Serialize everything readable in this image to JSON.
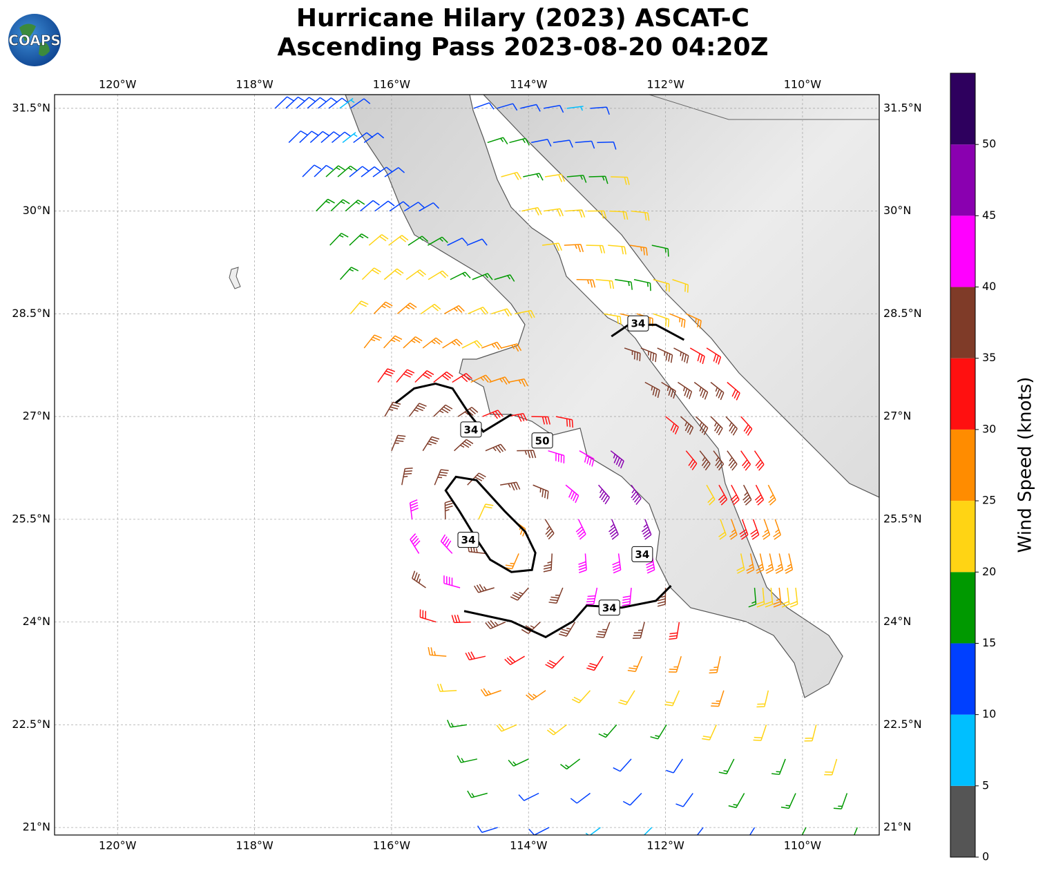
{
  "title_lines": [
    "Hurricane Hilary (2023) ASCAT-C",
    "Ascending Pass 2023-08-20 04:20Z"
  ],
  "logo_text": "COAPS",
  "map": {
    "lonlim": [
      -120.92,
      -108.88
    ],
    "latlim": [
      20.89,
      31.7
    ],
    "grid": true,
    "lonticks": [
      {
        "value": -120,
        "label": "120°W"
      },
      {
        "value": -118,
        "label": "118°W"
      },
      {
        "value": -116,
        "label": "116°W"
      },
      {
        "value": -114,
        "label": "114°W"
      },
      {
        "value": -112,
        "label": "112°W"
      },
      {
        "value": -110,
        "label": "110°W"
      }
    ],
    "latticks": [
      {
        "value": 31.5,
        "label": "31.5°N"
      },
      {
        "value": 30,
        "label": "30°N"
      },
      {
        "value": 28.5,
        "label": "28.5°N"
      },
      {
        "value": 27,
        "label": "27°N"
      },
      {
        "value": 25.5,
        "label": "25.5°N"
      },
      {
        "value": 24,
        "label": "24°N"
      },
      {
        "value": 22.5,
        "label": "22.5°N"
      },
      {
        "value": 21,
        "label": "21°N"
      }
    ],
    "swath_rows": [
      {
        "lat": 31.5,
        "lon0": -117.7,
        "lon1": -116.6,
        "speeds": [
          12,
          12,
          12,
          12,
          12,
          12,
          8,
          12
        ]
      },
      {
        "lat": 31,
        "lon0": -117.5,
        "lon1": -116.4,
        "speeds": [
          12,
          12,
          12,
          12,
          12,
          8,
          12,
          12
        ]
      },
      {
        "lat": 30.5,
        "lon0": -117.3,
        "lon1": -116.1,
        "speeds": [
          12,
          12,
          17,
          17,
          12,
          12,
          12,
          12
        ]
      },
      {
        "lat": 30,
        "lon0": -117.1,
        "lon1": -115.6,
        "speeds": [
          17,
          17,
          17,
          12,
          12,
          12,
          12,
          12
        ]
      },
      {
        "lat": 29.5,
        "lon0": -116.9,
        "lon1": -114.9,
        "speeds": [
          17,
          17,
          22,
          22,
          17,
          17,
          12,
          12
        ]
      },
      {
        "lat": 29,
        "lon0": -116.75,
        "lon1": -114.5,
        "speeds": [
          17,
          22,
          22,
          22,
          22,
          17,
          17,
          17
        ]
      },
      {
        "lat": 28.5,
        "lon0": -116.6,
        "lon1": -114.2,
        "speeds": [
          22,
          27,
          27,
          22,
          27,
          22,
          22,
          22
        ]
      },
      {
        "lat": 28,
        "lon0": -116.4,
        "lon1": -114.4,
        "speeds": [
          27,
          27,
          27,
          27,
          27,
          22,
          27,
          27
        ]
      },
      {
        "lat": 27.5,
        "lon0": -116.2,
        "lon1": -114.3,
        "speeds": [
          32,
          32,
          32,
          32,
          32,
          27,
          27,
          27
        ]
      },
      {
        "lat": 27,
        "lon0": -116.1,
        "lon1": -113.6,
        "speeds": [
          37,
          37,
          37,
          37,
          32,
          32,
          32,
          32
        ]
      },
      {
        "lat": 26.5,
        "lon0": -116.0,
        "lon1": -112.8,
        "speeds": [
          37,
          37,
          37,
          37,
          37,
          42,
          42,
          48
        ]
      },
      {
        "lat": 26,
        "lon0": -115.85,
        "lon1": -112.5,
        "speeds": [
          37,
          37,
          37,
          37,
          37,
          42,
          48,
          48
        ]
      },
      {
        "lat": 25.5,
        "lon0": -115.7,
        "lon1": -112.3,
        "speeds": [
          42,
          37,
          22,
          27,
          37,
          42,
          48,
          48
        ]
      },
      {
        "lat": 25,
        "lon0": -115.6,
        "lon1": -112.2,
        "speeds": [
          42,
          42,
          37,
          27,
          37,
          42,
          42,
          42
        ]
      },
      {
        "lat": 24.5,
        "lon0": -115.5,
        "lon1": -112.0,
        "speeds": [
          37,
          42,
          37,
          37,
          37,
          42,
          42,
          37
        ]
      },
      {
        "lat": 24,
        "lon0": -115.35,
        "lon1": -111.8,
        "speeds": [
          32,
          32,
          37,
          37,
          37,
          37,
          37,
          32
        ]
      },
      {
        "lat": 23.5,
        "lon0": -115.2,
        "lon1": -111.2,
        "speeds": [
          27,
          32,
          32,
          32,
          32,
          27,
          27,
          27
        ]
      },
      {
        "lat": 23,
        "lon0": -115.05,
        "lon1": -110.5,
        "speeds": [
          22,
          27,
          27,
          22,
          22,
          22,
          27,
          22
        ]
      },
      {
        "lat": 22.5,
        "lon0": -114.9,
        "lon1": -109.8,
        "speeds": [
          17,
          22,
          22,
          17,
          17,
          22,
          22,
          22
        ]
      },
      {
        "lat": 22,
        "lon0": -114.75,
        "lon1": -109.5,
        "speeds": [
          17,
          17,
          17,
          12,
          12,
          17,
          17,
          22
        ]
      },
      {
        "lat": 21.5,
        "lon0": -114.6,
        "lon1": -109.35,
        "speeds": [
          17,
          12,
          12,
          12,
          12,
          17,
          17,
          17
        ]
      },
      {
        "lat": 21,
        "lon0": -114.45,
        "lon1": -109.2,
        "speeds": [
          12,
          12,
          8,
          8,
          12,
          12,
          17,
          17
        ]
      }
    ],
    "gulf_rows": [
      {
        "lat": 31.5,
        "lon0": -114.8,
        "lon1": -113.1,
        "speeds": [
          12,
          12,
          12,
          12,
          8,
          12
        ]
      },
      {
        "lat": 31,
        "lon0": -114.6,
        "lon1": -113.0,
        "speeds": [
          17,
          17,
          12,
          12,
          12,
          12
        ]
      },
      {
        "lat": 30.5,
        "lon0": -114.4,
        "lon1": -112.8,
        "speeds": [
          22,
          17,
          22,
          17,
          17,
          22
        ]
      },
      {
        "lat": 30,
        "lon0": -114.1,
        "lon1": -112.5,
        "speeds": [
          22,
          22,
          22,
          22,
          22,
          22
        ]
      },
      {
        "lat": 29.5,
        "lon0": -113.8,
        "lon1": -112.2,
        "speeds": [
          22,
          27,
          22,
          22,
          27,
          17
        ]
      },
      {
        "lat": 29,
        "lon0": -113.3,
        "lon1": -111.9,
        "speeds": [
          27,
          22,
          17,
          17,
          22,
          22
        ]
      },
      {
        "lat": 28.5,
        "lon0": -112.9,
        "lon1": -111.7,
        "speeds": [
          22,
          27,
          27,
          22,
          27,
          27
        ]
      },
      {
        "lat": 28,
        "lon0": -112.6,
        "lon1": -111.4,
        "speeds": [
          37,
          37,
          37,
          37,
          32,
          32
        ]
      },
      {
        "lat": 27.5,
        "lon0": -112.3,
        "lon1": -111.1,
        "speeds": [
          37,
          37,
          37,
          37,
          37,
          32
        ]
      },
      {
        "lat": 27,
        "lon0": -112.0,
        "lon1": -110.9,
        "speeds": [
          32,
          37,
          37,
          37,
          37,
          32
        ]
      },
      {
        "lat": 26.5,
        "lon0": -111.7,
        "lon1": -110.7,
        "speeds": [
          32,
          37,
          37,
          37,
          32,
          32
        ]
      },
      {
        "lat": 26,
        "lon0": -111.4,
        "lon1": -110.5,
        "speeds": [
          22,
          32,
          32,
          37,
          32,
          27
        ]
      },
      {
        "lat": 25.5,
        "lon0": -111.2,
        "lon1": -110.4,
        "speeds": [
          22,
          27,
          32,
          32,
          27,
          27
        ]
      },
      {
        "lat": 25,
        "lon0": -110.9,
        "lon1": -110.2,
        "speeds": [
          22,
          27,
          27,
          27,
          27,
          27
        ]
      },
      {
        "lat": 24.5,
        "lon0": -110.7,
        "lon1": -110.1,
        "speeds": [
          17,
          22,
          22,
          27,
          22,
          22
        ]
      }
    ],
    "contours": [
      {
        "level": 34,
        "lon": [
          -115.94,
          -115.67,
          -115.36,
          -115.11,
          -114.86,
          -114.66,
          -114.25
        ],
        "lat": [
          27.2,
          27.41,
          27.48,
          27.41,
          27.03,
          26.78,
          27.03
        ]
      },
      {
        "level": 34,
        "lon": [
          -114.94,
          -114.25,
          -113.75,
          -113.35,
          -113.15,
          -112.64,
          -112.14,
          -111.92
        ],
        "lat": [
          24.16,
          24.01,
          23.78,
          24.01,
          24.24,
          24.21,
          24.31,
          24.53
        ]
      },
      {
        "level": 34,
        "lon": [
          -115.01,
          -115.21,
          -115.06,
          -114.76,
          -114.35,
          -114.05,
          -113.9,
          -113.95,
          -114.25,
          -114.56,
          -114.76,
          -115.01
        ],
        "lat": [
          25.62,
          25.92,
          26.12,
          26.07,
          25.62,
          25.32,
          25.01,
          24.76,
          24.73,
          24.91,
          25.21,
          25.62
        ]
      },
      {
        "level": 34,
        "lon": [
          -112.79,
          -112.54,
          -112.14,
          -111.73
        ],
        "lat": [
          28.17,
          28.34,
          28.34,
          28.12
        ]
      }
    ],
    "contour_labels": [
      {
        "level": 34,
        "lon": -114.84,
        "lat": 26.81
      },
      {
        "level": 34,
        "lon": -114.88,
        "lat": 25.2
      },
      {
        "level": 34,
        "lon": -112.4,
        "lat": 28.36
      },
      {
        "level": 34,
        "lon": -112.82,
        "lat": 24.21
      },
      {
        "level": 34,
        "lon": -112.34,
        "lat": 24.99
      },
      {
        "level": 50,
        "lon": -113.8,
        "lat": 26.65
      }
    ]
  },
  "colorbar": {
    "label": "Wind Speed (knots)",
    "bounds": [
      0,
      5,
      10,
      15,
      20,
      25,
      30,
      35,
      40,
      45,
      50,
      55
    ],
    "colors": [
      "#555555",
      "#00bfff",
      "#0040ff",
      "#009900",
      "#ffd414",
      "#ff8c00",
      "#ff1010",
      "#7f3b28",
      "#ff00ff",
      "#8a00b0",
      "#2e005e"
    ],
    "ticks": [
      0,
      5,
      10,
      15,
      20,
      25,
      30,
      35,
      40,
      45,
      50
    ]
  }
}
